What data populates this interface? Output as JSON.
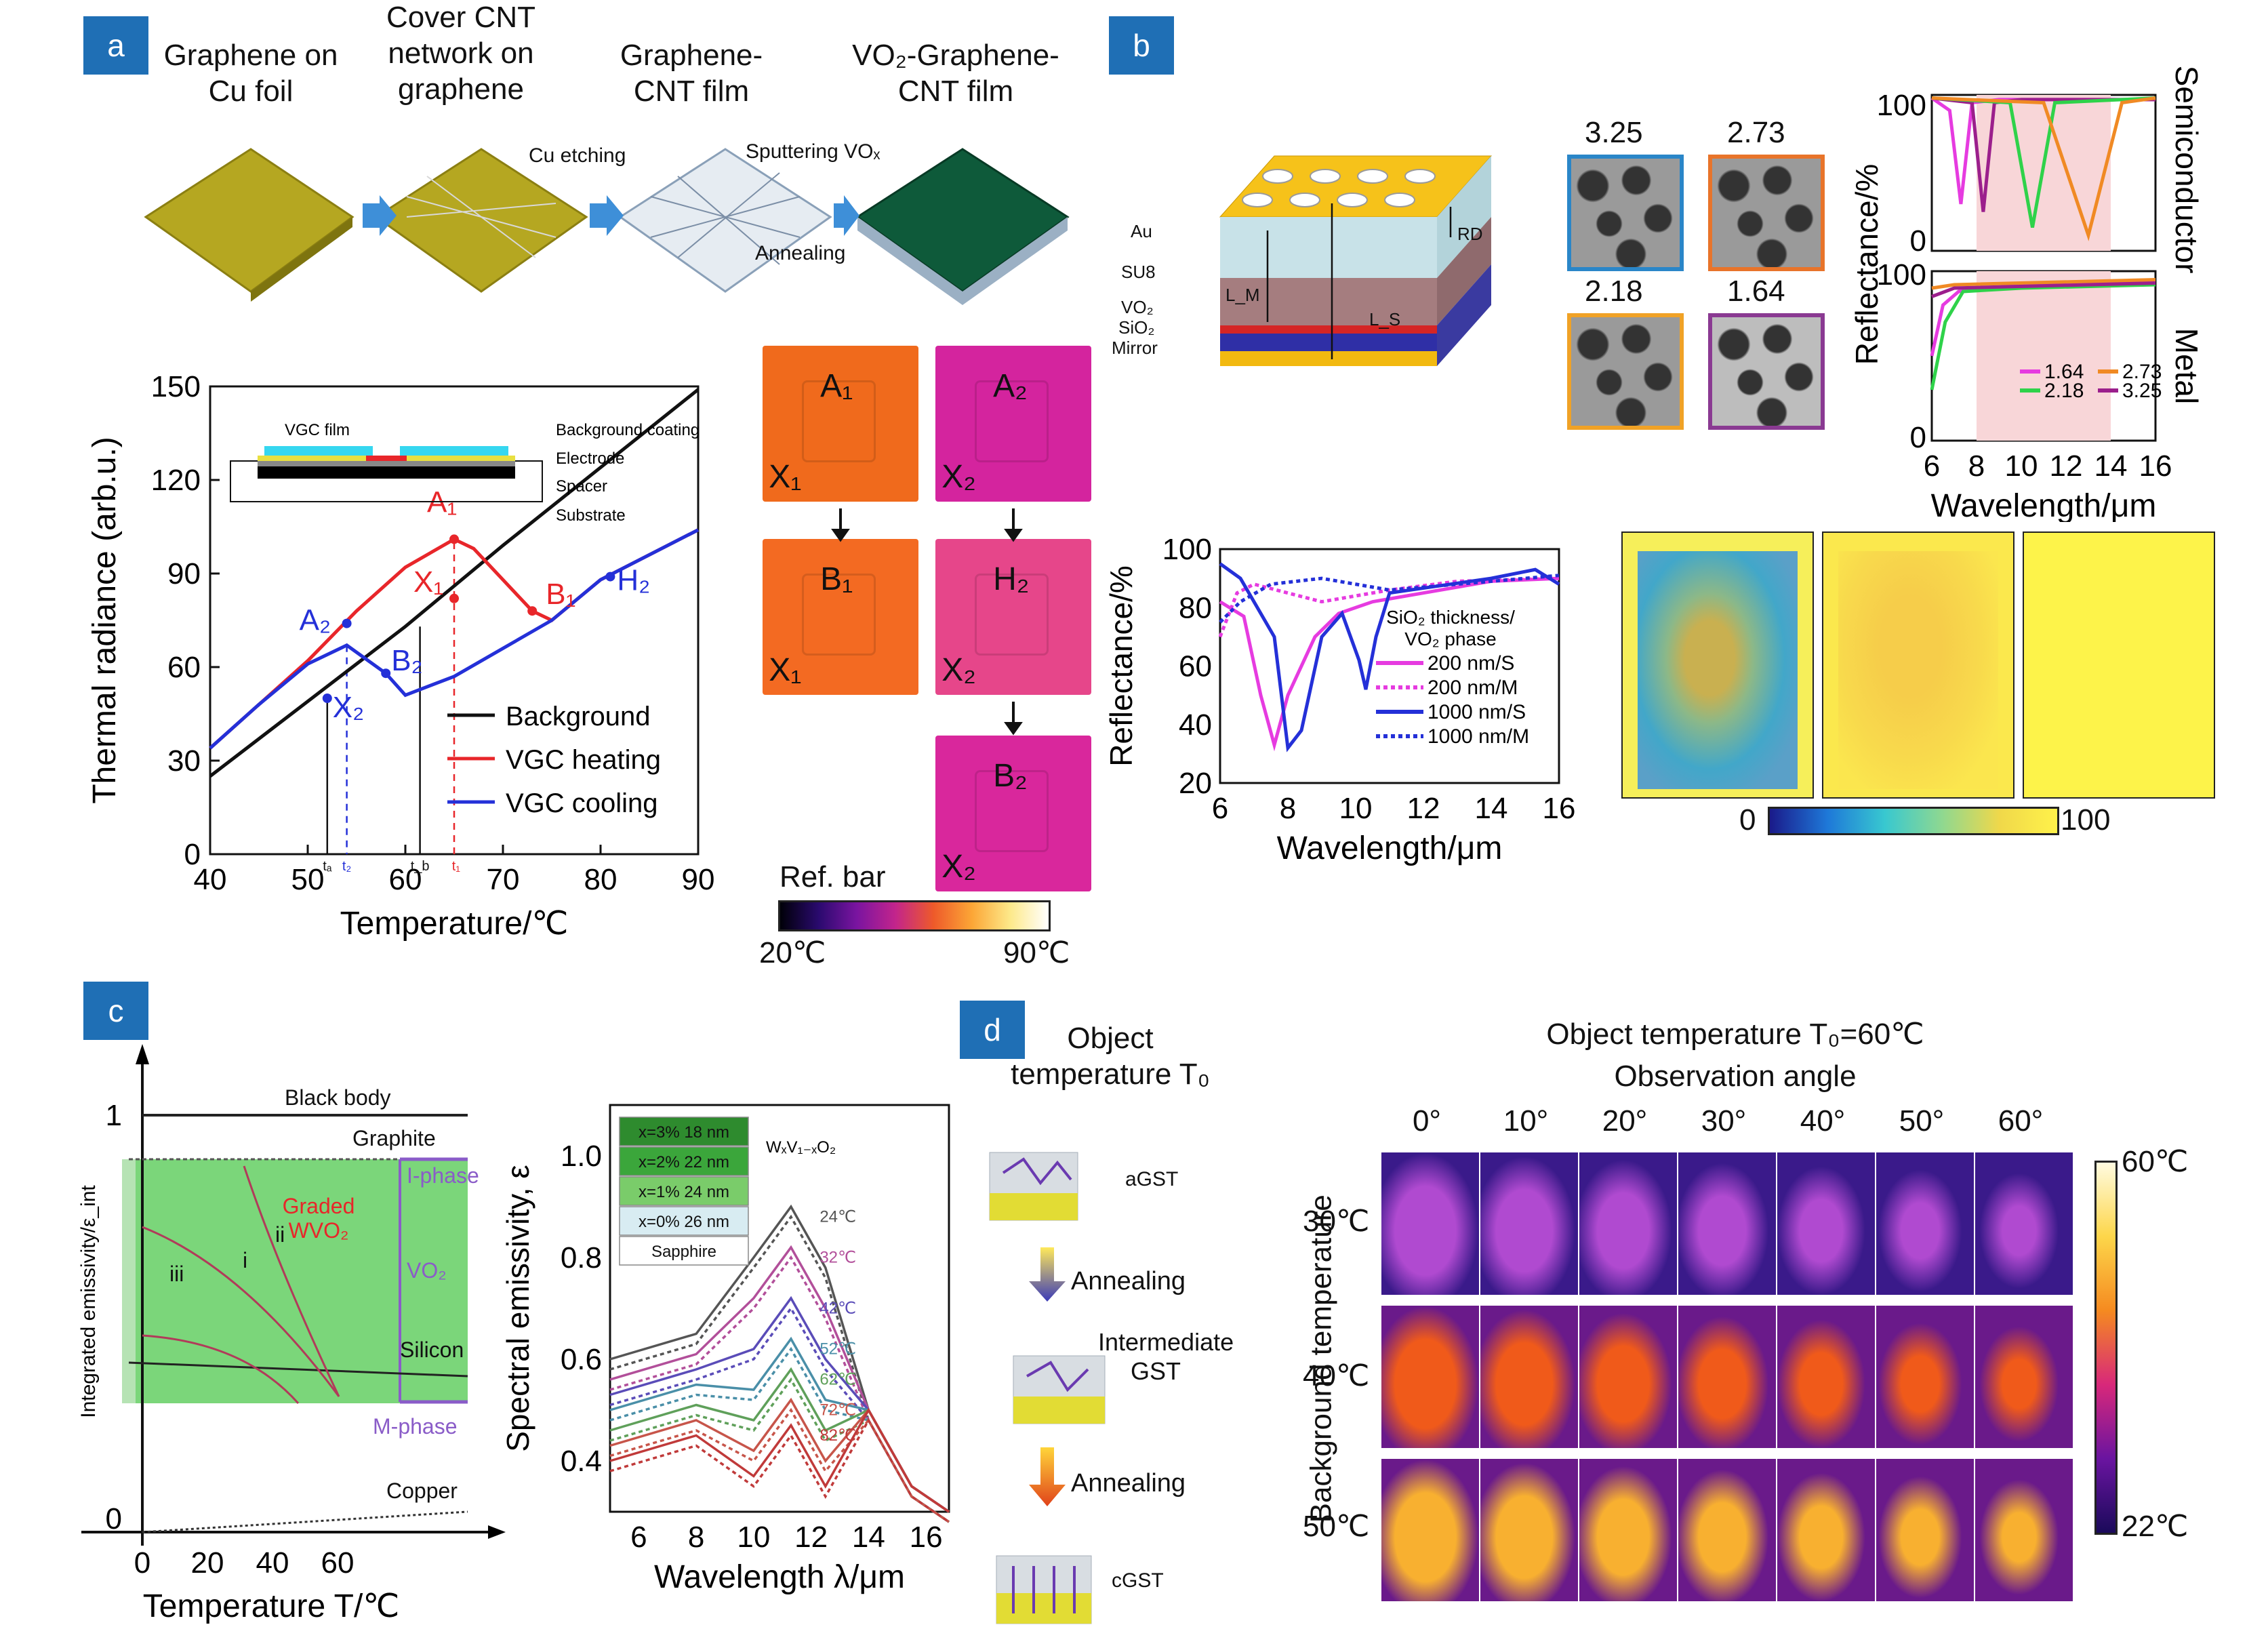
{
  "panel_labels": {
    "a": "a",
    "b": "b",
    "c": "c",
    "d": "d"
  },
  "a": {
    "steps": [
      "Graphene on Cu foil",
      "Cover CNT network on graphene",
      "Graphene-CNT film",
      "VO₂-Graphene-CNT film"
    ],
    "step_actions": [
      "Cu etching",
      "Sputtering VOₓ",
      "Annealing"
    ],
    "inset_labels": [
      "VGC film",
      "Background coating",
      "Electrode",
      "Spacer",
      "Substrate"
    ],
    "chart_data": {
      "type": "line",
      "xlabel": "Temperature/℃",
      "ylabel": "Thermal radiance (arb.u.)",
      "xlim": [
        40,
        90
      ],
      "ylim": [
        0,
        150
      ],
      "xticks": [
        40,
        50,
        60,
        70,
        80,
        90
      ],
      "yticks": [
        0,
        30,
        60,
        90,
        120,
        150
      ],
      "legend_position": "bottom-right",
      "series": [
        {
          "name": "Background",
          "color": "#111111",
          "x": [
            40,
            50,
            60,
            70,
            80,
            90
          ],
          "y": [
            25,
            49,
            73,
            99,
            124,
            149
          ]
        },
        {
          "name": "VGC heating",
          "color": "#e8262a",
          "x": [
            40,
            45,
            50,
            55,
            60,
            65,
            67,
            70,
            73,
            75,
            80,
            90
          ],
          "y": [
            34,
            48,
            62,
            78,
            92,
            101,
            98,
            88,
            78,
            75,
            88,
            104
          ]
        },
        {
          "name": "VGC cooling",
          "color": "#2430d8",
          "x": [
            40,
            45,
            50,
            54,
            58,
            60,
            65,
            70,
            75,
            80,
            90
          ],
          "y": [
            34,
            48,
            61,
            67,
            58,
            51,
            57,
            66,
            75,
            88,
            104
          ]
        }
      ],
      "point_labels": [
        "A₁",
        "X₁",
        "B₁",
        "A₂",
        "X₂",
        "B₂",
        "H₂"
      ],
      "t_labels": [
        "tₐ",
        "t₂",
        "t_b",
        "t₁"
      ]
    },
    "thermal_labels": {
      "A1": "A₁",
      "X1": "X₁",
      "B1": "B₁",
      "A2": "A₂",
      "X2": "X₂",
      "H2": "H₂",
      "B2": "B₂"
    },
    "refbar": {
      "title": "Ref. bar",
      "min": "20℃",
      "max": "90℃"
    }
  },
  "b": {
    "layers": [
      "Au",
      "SU8",
      "VO₂",
      "SiO₂",
      "Mirror"
    ],
    "dims": [
      "RD",
      "L_M",
      "L_S"
    ],
    "sem_values": [
      "3.25",
      "2.73",
      "2.18",
      "1.64"
    ],
    "reflect_chart": {
      "type": "line",
      "xlabel": "Wavelength/μm",
      "ylabel": "Reflectance/%",
      "xticks": [
        6,
        8,
        10,
        12,
        14,
        16
      ],
      "yticks_top": [
        0,
        100
      ],
      "yticks_bottom": [
        0,
        100
      ],
      "side_labels": [
        "Semiconductor",
        "Metal"
      ],
      "legend": [
        "1.64",
        "2.73",
        "2.18",
        "3.25"
      ],
      "colors": {
        "1.64": "#e63be0",
        "2.73": "#f08a24",
        "2.18": "#2fd24a",
        "3.25": "#9b1f8c"
      }
    },
    "sio2_chart": {
      "type": "line",
      "xlabel": "Wavelength/μm",
      "ylabel": "Reflectance/%",
      "xlim": [
        6,
        16
      ],
      "ylim": [
        20,
        100
      ],
      "xticks": [
        6,
        8,
        10,
        12,
        14,
        16
      ],
      "yticks": [
        20,
        40,
        60,
        80,
        100
      ],
      "legend_title": "SiO₂ thickness/ VO₂ phase",
      "legend": [
        "200 nm/S",
        "200 nm/M",
        "1000 nm/S",
        "1000 nm/M"
      ]
    },
    "colorbar": {
      "min": "0",
      "max": "100"
    }
  },
  "c": {
    "schematic": {
      "xlabel": "Temperature T/℃",
      "ylabel": "Integrated emissivity/ε_int",
      "xticks": [
        "0",
        "20",
        "40",
        "60"
      ],
      "yticks": [
        "0",
        "1"
      ],
      "labels": [
        "Black body",
        "Graphite",
        "I-phase",
        "Graded WVO₂",
        "VO₂",
        "Silicon",
        "M-phase",
        "Copper",
        "i",
        "ii",
        "iii"
      ]
    },
    "emis_chart": {
      "type": "line",
      "xlabel": "Wavelength λ/μm",
      "ylabel": "Spectral emissivity, ε",
      "xticks": [
        6,
        8,
        10,
        12,
        14,
        16
      ],
      "yticks": [
        0.4,
        0.6,
        0.8,
        1.0
      ],
      "layers": [
        "x=3% 18 nm",
        "x=2% 22 nm",
        "x=1% 24 nm",
        "x=0% 26 nm",
        "Sapphire"
      ],
      "formula": "WₓV₁₋ₓO₂",
      "temps": [
        "24℃",
        "32℃",
        "42℃",
        "52℃",
        "62℃",
        "72℃",
        "82℃"
      ]
    }
  },
  "d": {
    "title": "Object temperature T₀",
    "states": [
      "aGST",
      "Intermediate GST",
      "cGST"
    ],
    "steps": [
      "Annealing",
      "Annealing"
    ],
    "grid_title": "Object temperature T₀=60℃",
    "grid_subtitle": "Observation angle",
    "angles": [
      "0°",
      "10°",
      "20°",
      "30°",
      "40°",
      "50°",
      "60°"
    ],
    "bg_label": "Background temperature",
    "bg_temps": [
      "30℃",
      "40℃",
      "50℃"
    ],
    "colorbar": {
      "max": "60℃",
      "min": "22℃"
    }
  }
}
